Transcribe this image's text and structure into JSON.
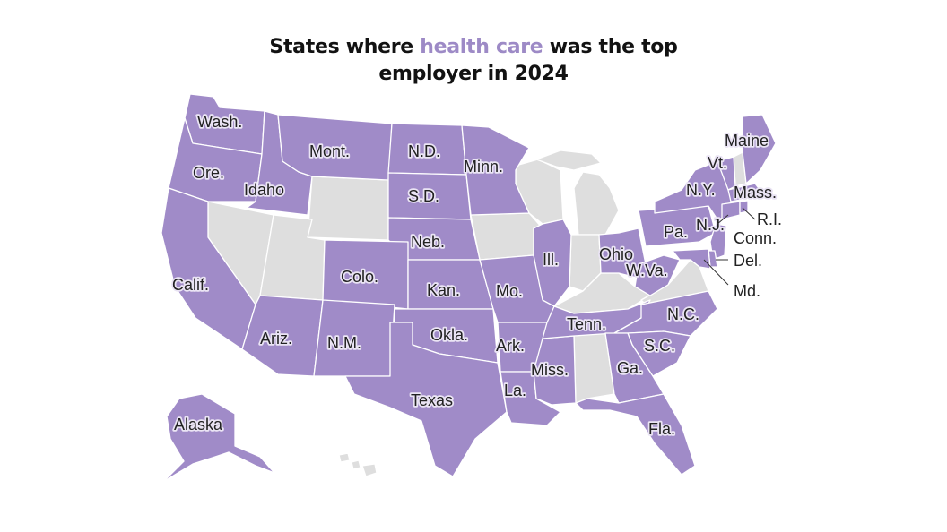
{
  "title": {
    "prefix": "States where",
    "highlight": "health care",
    "suffix": "was the top",
    "line2": "employer in 2024"
  },
  "colors": {
    "health_care": "#a08bc8",
    "other": "#dedede",
    "highlight_text": "#9d8ac6"
  },
  "labels": {
    "wa": "Wash.",
    "or": "Ore.",
    "id": "Idaho",
    "mt": "Mont.",
    "nd": "N.D.",
    "sd": "S.D.",
    "mn": "Minn.",
    "ne": "Neb.",
    "ca": "Calif.",
    "co": "Colo.",
    "ks": "Kan.",
    "mo": "Mo.",
    "il": "Ill.",
    "oh": "Ohio",
    "wv": "W.Va.",
    "pa": "Pa.",
    "ny": "N.Y.",
    "vt": "Vt.",
    "me": "Maine",
    "ma": "Mass.",
    "nj": "N.J.",
    "ri": "R.I.",
    "ct": "Conn.",
    "de": "Del.",
    "md": "Md.",
    "az": "Ariz.",
    "nm": "N.M.",
    "ok": "Okla.",
    "ar": "Ark.",
    "tn": "Tenn.",
    "nc": "N.C.",
    "sc": "S.C.",
    "ga": "Ga.",
    "ms": "Miss.",
    "la": "La.",
    "tx": "Texas",
    "fl": "Fla.",
    "ak": "Alaska"
  }
}
